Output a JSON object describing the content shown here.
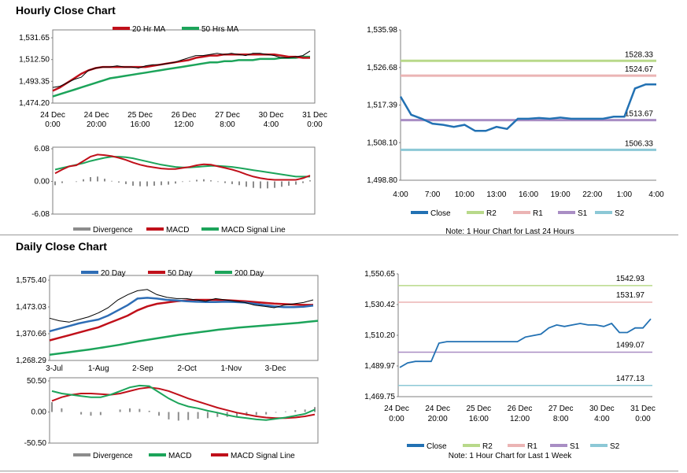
{
  "colors": {
    "ma20": "#c0101a",
    "ma50": "#1ca45a",
    "blue": "#2e6db5",
    "green": "#1ca45a",
    "red": "#c0101a",
    "div": "#8c8c8c",
    "grayline": "#7f7f7f",
    "r2": "#b8d98a",
    "r1": "#ebb4b4",
    "s1": "#a98ec4",
    "s2": "#8cc8d6",
    "close": "#2271b3"
  },
  "hourly": {
    "title": "Hourly Close Chart",
    "price": {
      "type": "line",
      "yticks": [
        "1,531.65",
        "1,512.50",
        "1,493.35",
        "1,474.20"
      ],
      "ylim": [
        1474.2,
        1531.65
      ],
      "xticks": [
        [
          "24 Dec",
          "0:00"
        ],
        [
          "24 Dec",
          "20:00"
        ],
        [
          "25 Dec",
          "16:00"
        ],
        [
          "26 Dec",
          "12:00"
        ],
        [
          "27 Dec",
          "8:00"
        ],
        [
          "30 Dec",
          "4:00"
        ],
        [
          "31 Dec",
          "0:00"
        ]
      ],
      "legend": [
        {
          "name": "20 Hr MA",
          "color": "#c0101a"
        },
        {
          "name": "50 Hrs MA",
          "color": "#1ca45a"
        }
      ],
      "close": [
        1488,
        1489,
        1492,
        1495,
        1497,
        1503,
        1505,
        1506,
        1506,
        1507,
        1506,
        1506,
        1505,
        1507,
        1508,
        1508,
        1509,
        1510,
        1512,
        1514,
        1516,
        1516,
        1517,
        1518,
        1517,
        1518,
        1517,
        1516,
        1518,
        1518,
        1517,
        1516,
        1514,
        1514,
        1515,
        1516,
        1520
      ],
      "ma20": [
        1485,
        1488,
        1492,
        1496,
        1500,
        1503,
        1505,
        1506,
        1506,
        1506,
        1506,
        1506,
        1506,
        1506,
        1507,
        1508,
        1509,
        1510,
        1511,
        1512,
        1514,
        1515,
        1516,
        1516,
        1517,
        1517,
        1517,
        1517,
        1517,
        1517,
        1517,
        1517,
        1516,
        1515,
        1515,
        1514,
        1514
      ],
      "ma50": [
        1480,
        1482,
        1484,
        1486,
        1488,
        1490,
        1492,
        1494,
        1496,
        1497,
        1498,
        1499,
        1500,
        1501,
        1502,
        1503,
        1504,
        1505,
        1506,
        1507,
        1508,
        1509,
        1510,
        1510,
        1511,
        1511,
        1512,
        1512,
        1512,
        1513,
        1513,
        1513,
        1514,
        1514,
        1514,
        1515,
        1515
      ]
    },
    "macd": {
      "type": "line",
      "yticks": [
        "6.08",
        "0.00",
        "-6.08"
      ],
      "ylim": [
        -6.08,
        6.08
      ],
      "legend": [
        {
          "name": "Divergence",
          "color": "#8c8c8c"
        },
        {
          "name": "MACD",
          "color": "#c0101a"
        },
        {
          "name": "MACD Signal Line",
          "color": "#1ca45a"
        }
      ],
      "macd": [
        1.5,
        2.2,
        2.8,
        3,
        3.8,
        4.6,
        5.0,
        4.9,
        4.7,
        4.4,
        4.0,
        3.5,
        3.1,
        2.8,
        2.6,
        2.4,
        2.3,
        2.3,
        2.5,
        2.7,
        3.0,
        3.2,
        3.1,
        2.8,
        2.5,
        2.2,
        1.8,
        1.3,
        0.9,
        0.6,
        0.4,
        0.3,
        0.3,
        0.3,
        0.3,
        0.6,
        1.1
      ],
      "signal": [
        2.2,
        2.5,
        2.8,
        3.1,
        3.4,
        3.8,
        4.1,
        4.4,
        4.6,
        4.6,
        4.5,
        4.3,
        4.0,
        3.7,
        3.4,
        3.1,
        2.9,
        2.7,
        2.6,
        2.6,
        2.7,
        2.8,
        2.9,
        2.9,
        2.8,
        2.7,
        2.5,
        2.3,
        2.1,
        1.9,
        1.7,
        1.5,
        1.3,
        1.1,
        0.9,
        0.9,
        0.9
      ]
    },
    "pivot": {
      "type": "line",
      "yticks": [
        "1,535.98",
        "1,526.68",
        "1,517.39",
        "1,508.10",
        "1,498.80"
      ],
      "ylim": [
        1498.8,
        1535.98
      ],
      "xticks": [
        "4:00",
        "7:00",
        "10:00",
        "13:00",
        "16:00",
        "19:00",
        "22:00",
        "1:00",
        "4:00"
      ],
      "close": [
        1519.5,
        1515,
        1514,
        1512.8,
        1512.5,
        1512,
        1512.5,
        1511,
        1511,
        1512,
        1511.5,
        1514,
        1514,
        1514.2,
        1514,
        1514.3,
        1514,
        1514,
        1514,
        1514,
        1514.5,
        1514.5,
        1521.5,
        1522.5,
        1522.5
      ],
      "levels": [
        {
          "name": "R2",
          "value": "1528.33",
          "color": "#b8d98a"
        },
        {
          "name": "R1",
          "value": "1524.67",
          "color": "#ebb4b4"
        },
        {
          "name": "S1",
          "value": "1513.67",
          "color": "#a98ec4"
        },
        {
          "name": "S2",
          "value": "1506.33",
          "color": "#8cc8d6"
        }
      ],
      "legend_close": "Close",
      "note": "Note: 1 Hour Chart for Last 24 Hours"
    }
  },
  "daily": {
    "title": "Daily Close Chart",
    "price": {
      "type": "line",
      "yticks": [
        "1,575.40",
        "1,473.03",
        "1,370.66",
        "1,268.29"
      ],
      "ylim": [
        1268.29,
        1575.4
      ],
      "xticks": [
        "3-Jul",
        "1-Aug",
        "2-Sep",
        "2-Oct",
        "1-Nov",
        "3-Dec"
      ],
      "legend": [
        {
          "name": "20 Day",
          "color": "#2e6db5"
        },
        {
          "name": "50 Day",
          "color": "#c0101a"
        },
        {
          "name": "200 Day",
          "color": "#1ca45a"
        }
      ],
      "close": [
        1430,
        1420,
        1415,
        1425,
        1435,
        1450,
        1470,
        1500,
        1520,
        1535,
        1540,
        1520,
        1510,
        1505,
        1505,
        1500,
        1495,
        1505,
        1500,
        1495,
        1490,
        1480,
        1475,
        1470,
        1480,
        1485,
        1490,
        1500
      ],
      "ma20": [
        1380,
        1390,
        1400,
        1410,
        1418,
        1425,
        1440,
        1460,
        1480,
        1505,
        1508,
        1505,
        1500,
        1498,
        1495,
        1493,
        1492,
        1492,
        1493,
        1492,
        1490,
        1485,
        1480,
        1475,
        1472,
        1472,
        1474,
        1478
      ],
      "ma50": [
        1345,
        1355,
        1365,
        1375,
        1385,
        1395,
        1410,
        1425,
        1440,
        1460,
        1475,
        1485,
        1490,
        1495,
        1498,
        1500,
        1500,
        1500,
        1499,
        1497,
        1495,
        1492,
        1489,
        1486,
        1484,
        1482,
        1481,
        1481
      ],
      "ma200": [
        1290,
        1295,
        1300,
        1305,
        1310,
        1316,
        1322,
        1328,
        1335,
        1342,
        1348,
        1354,
        1360,
        1366,
        1371,
        1376,
        1381,
        1386,
        1390,
        1394,
        1397,
        1400,
        1403,
        1406,
        1409,
        1412,
        1416,
        1420
      ]
    },
    "macd": {
      "type": "line",
      "yticks": [
        "50.50",
        "0.00",
        "-50.50"
      ],
      "ylim": [
        -50.5,
        50.5
      ],
      "legend": [
        {
          "name": "Divergence",
          "color": "#8c8c8c"
        },
        {
          "name": "MACD",
          "color": "#1ca45a"
        },
        {
          "name": "MACD Signal Line",
          "color": "#c0101a"
        }
      ],
      "macd": [
        34,
        30,
        28,
        26,
        24,
        24,
        28,
        34,
        40,
        43,
        42,
        32,
        22,
        14,
        9,
        6,
        2,
        -1,
        -5,
        -8,
        -10,
        -12,
        -13,
        -11,
        -9,
        -6,
        -3,
        4
      ],
      "signal": [
        18,
        24,
        28,
        30,
        30,
        29,
        28,
        30,
        34,
        38,
        40,
        38,
        34,
        28,
        22,
        17,
        12,
        7,
        3,
        -1,
        -4,
        -7,
        -9,
        -10,
        -10,
        -9,
        -7,
        -4
      ]
    },
    "pivot": {
      "type": "line",
      "yticks": [
        "1,550.65",
        "1,530.42",
        "1,510.20",
        "1,489.97",
        "1,469.75"
      ],
      "ylim": [
        1469.75,
        1550.65
      ],
      "xticks": [
        [
          "24 Dec",
          "0:00"
        ],
        [
          "24 Dec",
          "20:00"
        ],
        [
          "25 Dec",
          "16:00"
        ],
        [
          "26 Dec",
          "12:00"
        ],
        [
          "27 Dec",
          "8:00"
        ],
        [
          "30 Dec",
          "4:00"
        ],
        [
          "31 Dec",
          "0:00"
        ]
      ],
      "close": [
        1489,
        1492,
        1493,
        1493,
        1493,
        1505,
        1506,
        1506,
        1506,
        1506,
        1506,
        1506,
        1506,
        1506,
        1506,
        1506,
        1509,
        1510,
        1511,
        1515,
        1517,
        1516,
        1517,
        1518,
        1517,
        1517,
        1516,
        1518,
        1512,
        1512,
        1515,
        1515,
        1521
      ],
      "levels": [
        {
          "name": "R2",
          "value": "1542.93",
          "color": "#b8d98a"
        },
        {
          "name": "R1",
          "value": "1531.97",
          "color": "#ebb4b4"
        },
        {
          "name": "S1",
          "value": "1499.07",
          "color": "#a98ec4"
        },
        {
          "name": "S2",
          "value": "1477.13",
          "color": "#8cc8d6"
        }
      ],
      "legend_close": "Close",
      "note": "Note: 1 Hour Chart for Last 1 Week"
    }
  }
}
